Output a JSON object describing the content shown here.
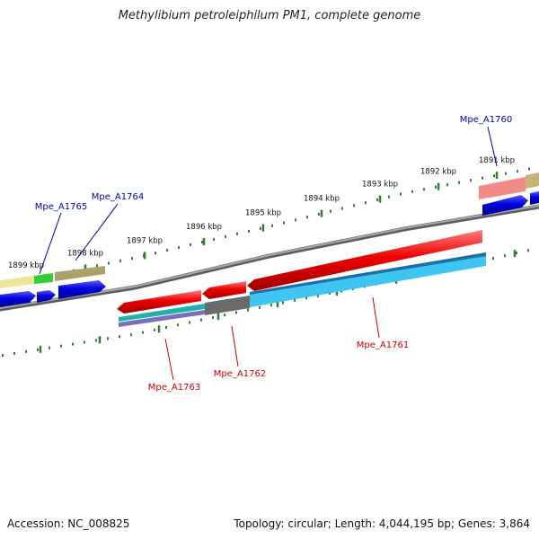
{
  "title": "Methylibium petroleiphilum PM1, complete genome",
  "footer": {
    "accession": "Accession: NC_008825",
    "summary": "Topology: circular; Length: 4,044,195 bp; Genes: 3,864"
  },
  "scale_labels": [
    "1899 kbp",
    "1898 kbp",
    "1897 kbp",
    "1896 kbp",
    "1895 kbp",
    "1894 kbp",
    "1893 kbp",
    "1892 kbp",
    "1891 kbp"
  ],
  "genes": [
    {
      "id": "Mpe_A1765",
      "strand": "forward",
      "color": "#0000aa"
    },
    {
      "id": "Mpe_A1764",
      "strand": "forward",
      "color": "#0000aa"
    },
    {
      "id": "Mpe_A1760",
      "strand": "forward",
      "color": "#0000aa"
    },
    {
      "id": "Mpe_A1763",
      "strand": "reverse",
      "color": "#cc0000"
    },
    {
      "id": "Mpe_A1762",
      "strand": "reverse",
      "color": "#cc0000"
    },
    {
      "id": "Mpe_A1761",
      "strand": "reverse",
      "color": "#cc0000"
    }
  ],
  "colors": {
    "backbone": "#8a8a8a",
    "tick": "#2e7d32",
    "forward_gene": "#0000dd",
    "reverse_gene": "#ee0000",
    "forward_label": "#0000aa",
    "reverse_label": "#cc0000"
  }
}
